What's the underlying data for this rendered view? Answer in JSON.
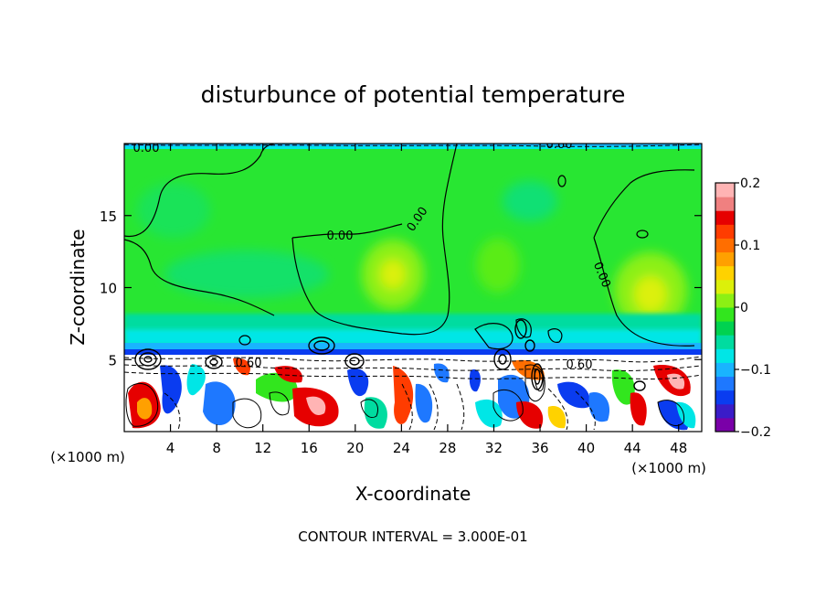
{
  "chart_data": {
    "type": "heatmap",
    "title": "disturbunce of potential temperature",
    "xlabel": "X-coordinate",
    "ylabel": "Z-coordinate",
    "x_unit": "(×1000 m)",
    "x_unit_right": "(×1000 m)",
    "xlim": [
      0,
      50
    ],
    "ylim": [
      0,
      20
    ],
    "x_ticks": [
      4,
      8,
      12,
      16,
      20,
      24,
      28,
      32,
      36,
      40,
      44,
      48
    ],
    "y_ticks": [
      5,
      10,
      15
    ],
    "colorbar": {
      "min": -0.2,
      "max": 0.2,
      "ticks": [
        0.2,
        0.1,
        0,
        -0.1,
        -0.2
      ],
      "tick_labels": [
        "0.2",
        "0.1",
        "0",
        "−0.1",
        "−0.2"
      ],
      "colors": [
        "#7a00a8",
        "#3a1cc8",
        "#0a3cf0",
        "#1e78ff",
        "#19b4ff",
        "#00e6e6",
        "#00dca0",
        "#00d250",
        "#32e61e",
        "#8cf014",
        "#dcf00a",
        "#ffd200",
        "#ffa000",
        "#ff6e00",
        "#ff3c00",
        "#e60000",
        "#f08080",
        "#ffb4b4"
      ]
    },
    "contour_labels": [
      "0.60",
      "0.00",
      "0.00",
      "0.00",
      "0.00",
      "0.60",
      "0.60"
    ],
    "footnote": "CONTOUR INTERVAL = 3.000E-01"
  }
}
